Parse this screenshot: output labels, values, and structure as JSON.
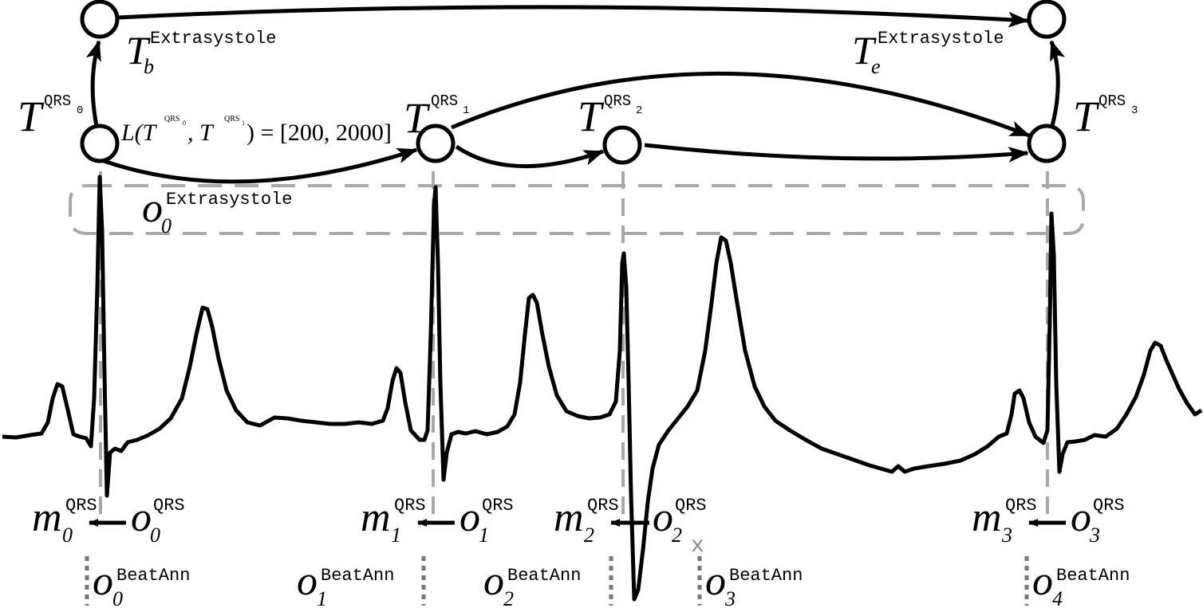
{
  "colors": {
    "ink": "#000000",
    "guide": "#a8a8a8",
    "dotted": "#777777",
    "rejected": "#8a8a8a"
  },
  "states": {
    "qrs0": {
      "base": "T",
      "sup": "QRS",
      "sub": "0"
    },
    "qrs1": {
      "base": "T",
      "sup": "QRS",
      "sub": "1"
    },
    "qrs2": {
      "base": "T",
      "sup": "QRS",
      "sub": "2"
    },
    "qrs3": {
      "base": "T",
      "sup": "QRS",
      "sub": "3"
    },
    "extra_begin": {
      "base": "T",
      "sub": "b",
      "sup": "Extrasystole"
    },
    "extra_end": {
      "base": "T",
      "sub": "e",
      "sup": "Extrasystole"
    }
  },
  "constraint": {
    "prefix": "L(T",
    "sup0": "QRS",
    "sub0": "0",
    "mid": ", T",
    "sup1": "QRS",
    "sub1": "1",
    "suffix": ") = [200, 2000]"
  },
  "abstraction": {
    "base": "o",
    "sub": "0",
    "sup": "Extrasystole"
  },
  "matches": [
    {
      "m": "m",
      "sub": "0",
      "sup": "QRS",
      "o": "o",
      "osub": "0",
      "osup": "QRS"
    },
    {
      "m": "m",
      "sub": "1",
      "sup": "QRS",
      "o": "o",
      "osub": "1",
      "osup": "QRS"
    },
    {
      "m": "m",
      "sub": "2",
      "sup": "QRS",
      "o": "o",
      "osub": "2",
      "osup": "QRS"
    },
    {
      "m": "m",
      "sub": "3",
      "sup": "QRS",
      "o": "o",
      "osub": "3",
      "osup": "QRS"
    }
  ],
  "beat_annotations": [
    {
      "base": "o",
      "sub": "0",
      "sup": "BeatAnn"
    },
    {
      "base": "o",
      "sub": "1",
      "sup": "BeatAnn"
    },
    {
      "base": "o",
      "sub": "2",
      "sup": "BeatAnn"
    },
    {
      "base": "o",
      "sub": "3",
      "sup": "BeatAnn"
    },
    {
      "base": "o",
      "sub": "4",
      "sup": "BeatAnn"
    }
  ],
  "rejected_mark": "x"
}
